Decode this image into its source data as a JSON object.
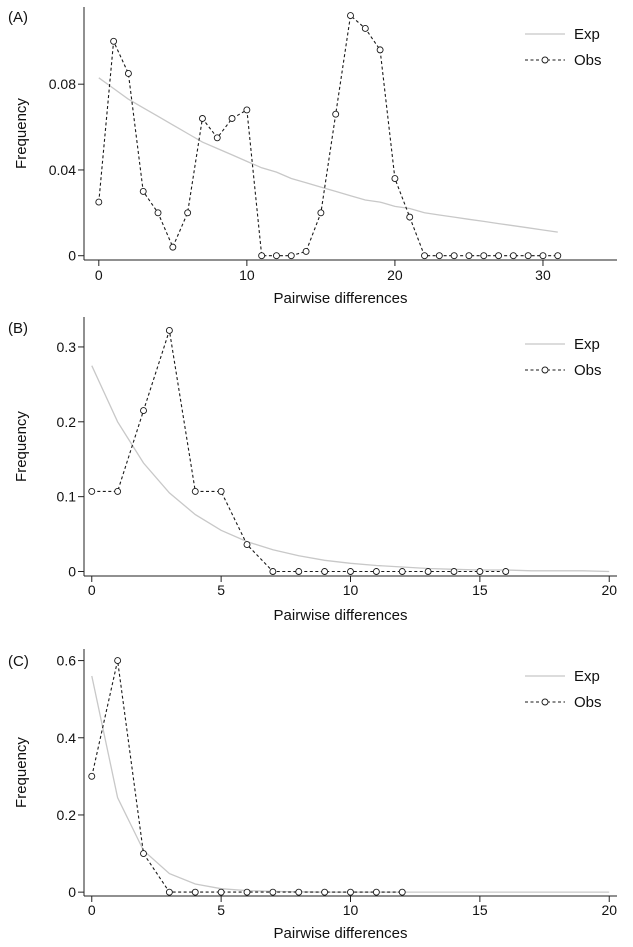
{
  "colors": {
    "exp": "#c8c8c8",
    "obs": "#1a1a1a",
    "axis": "#222222"
  },
  "chart_data": [
    {
      "type": "line",
      "panel_label": "(A)",
      "xlabel": "Pairwise differences",
      "ylabel": "Frequency",
      "xlim": [
        -1,
        35
      ],
      "ylim": [
        -0.002,
        0.116
      ],
      "xticks": [
        0,
        10,
        20,
        30
      ],
      "yticks": [
        0,
        0.04,
        0.08
      ],
      "ytick_labels": [
        "0",
        "0.04",
        "0.08"
      ],
      "legend_position": "top-right",
      "series": [
        {
          "name": "Exp",
          "style": "solid",
          "x": [
            0,
            1,
            2,
            3,
            4,
            5,
            6,
            7,
            8,
            9,
            10,
            11,
            12,
            13,
            14,
            15,
            16,
            17,
            18,
            19,
            20,
            21,
            22,
            23,
            24,
            25,
            26,
            27,
            28,
            29,
            30,
            31
          ],
          "values": [
            0.083,
            0.078,
            0.073,
            0.069,
            0.065,
            0.061,
            0.057,
            0.053,
            0.05,
            0.047,
            0.044,
            0.041,
            0.039,
            0.036,
            0.034,
            0.032,
            0.03,
            0.028,
            0.026,
            0.025,
            0.023,
            0.022,
            0.02,
            0.019,
            0.018,
            0.017,
            0.016,
            0.015,
            0.014,
            0.013,
            0.012,
            0.011
          ]
        },
        {
          "name": "Obs",
          "style": "dashed-circles",
          "x": [
            0,
            1,
            2,
            3,
            4,
            5,
            6,
            7,
            8,
            9,
            10,
            11,
            12,
            13,
            14,
            15,
            16,
            17,
            18,
            19,
            20,
            21,
            22,
            23,
            24,
            25,
            26,
            27,
            28,
            29,
            30,
            31
          ],
          "values": [
            0.025,
            0.1,
            0.085,
            0.03,
            0.02,
            0.004,
            0.02,
            0.064,
            0.055,
            0.064,
            0.068,
            0.0,
            0.0,
            0.0,
            0.002,
            0.02,
            0.066,
            0.112,
            0.106,
            0.096,
            0.036,
            0.018,
            0.0,
            0.0,
            0.0,
            0.0,
            0.0,
            0.0,
            0.0,
            0.0,
            0.0,
            0.0
          ]
        }
      ]
    },
    {
      "type": "line",
      "panel_label": "(B)",
      "xlabel": "Pairwise differences",
      "ylabel": "Frequency",
      "xlim": [
        -0.3,
        20.3
      ],
      "ylim": [
        -0.006,
        0.34
      ],
      "xticks": [
        0,
        5,
        10,
        15,
        20
      ],
      "yticks": [
        0,
        0.1,
        0.2,
        0.3
      ],
      "ytick_labels": [
        "0",
        "0.1",
        "0.2",
        "0.3"
      ],
      "legend_position": "top-right",
      "series": [
        {
          "name": "Exp",
          "style": "solid",
          "x": [
            0,
            1,
            2,
            3,
            4,
            5,
            6,
            7,
            8,
            9,
            10,
            11,
            12,
            13,
            14,
            15,
            16,
            17,
            18,
            19,
            20
          ],
          "values": [
            0.275,
            0.2,
            0.145,
            0.105,
            0.076,
            0.055,
            0.04,
            0.029,
            0.021,
            0.015,
            0.011,
            0.008,
            0.006,
            0.004,
            0.003,
            0.002,
            0.002,
            0.001,
            0.001,
            0.001,
            0.0
          ]
        },
        {
          "name": "Obs",
          "style": "dashed-circles",
          "x": [
            0,
            1,
            2,
            3,
            4,
            5,
            6,
            7,
            8,
            9,
            10,
            11,
            12,
            13,
            14,
            15,
            16
          ],
          "values": [
            0.107,
            0.107,
            0.215,
            0.322,
            0.107,
            0.107,
            0.036,
            0.0,
            0.0,
            0.0,
            0.0,
            0.0,
            0.0,
            0.0,
            0.0,
            0.0,
            0.0
          ]
        }
      ]
    },
    {
      "type": "line",
      "panel_label": "(C)",
      "xlabel": "Pairwise differences",
      "ylabel": "Frequency",
      "xlim": [
        -0.3,
        20.3
      ],
      "ylim": [
        -0.01,
        0.63
      ],
      "xticks": [
        0,
        5,
        10,
        15,
        20
      ],
      "yticks": [
        0,
        0.2,
        0.4,
        0.6
      ],
      "ytick_labels": [
        "0",
        "0.2",
        "0.4",
        "0.6"
      ],
      "legend_position": "top-right",
      "series": [
        {
          "name": "Exp",
          "style": "solid",
          "x": [
            0,
            1,
            2,
            3,
            4,
            5,
            6,
            7,
            8,
            9,
            10,
            11,
            12,
            13,
            14,
            15,
            16,
            17,
            18,
            19,
            20
          ],
          "values": [
            0.56,
            0.245,
            0.108,
            0.048,
            0.021,
            0.009,
            0.004,
            0.002,
            0.001,
            0.0,
            0.0,
            0.0,
            0.0,
            0.0,
            0.0,
            0.0,
            0.0,
            0.0,
            0.0,
            0.0,
            0.0
          ]
        },
        {
          "name": "Obs",
          "style": "dashed-circles",
          "x": [
            0,
            1,
            2,
            3,
            4,
            5,
            6,
            7,
            8,
            9,
            10,
            11,
            12
          ],
          "values": [
            0.3,
            0.6,
            0.1,
            0.0,
            0.0,
            0.0,
            0.0,
            0.0,
            0.0,
            0.0,
            0.0,
            0.0,
            0.0
          ]
        }
      ]
    }
  ]
}
